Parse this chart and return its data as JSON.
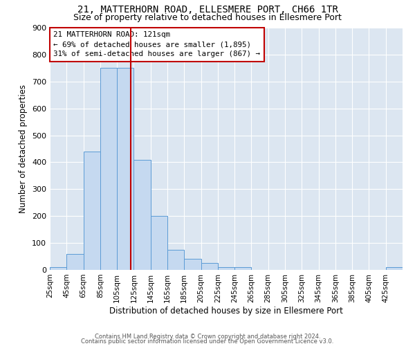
{
  "title1": "21, MATTERHORN ROAD, ELLESMERE PORT, CH66 1TR",
  "title2": "Size of property relative to detached houses in Ellesmere Port",
  "xlabel": "Distribution of detached houses by size in Ellesmere Port",
  "ylabel": "Number of detached properties",
  "bin_edges": [
    25,
    45,
    65,
    85,
    105,
    125,
    145,
    165,
    185,
    205,
    225,
    245,
    265,
    285,
    305,
    325,
    345,
    365,
    385,
    405,
    425,
    445
  ],
  "bar_heights": [
    10,
    60,
    440,
    750,
    750,
    410,
    200,
    75,
    40,
    25,
    10,
    10,
    0,
    0,
    0,
    0,
    0,
    0,
    0,
    0,
    10
  ],
  "bar_color": "#c5d9f0",
  "bar_edgecolor": "#5b9bd5",
  "vline_x": 121,
  "vline_color": "#c00000",
  "annotation_lines": [
    "21 MATTERHORN ROAD: 121sqm",
    "← 69% of detached houses are smaller (1,895)",
    "31% of semi-detached houses are larger (867) →"
  ],
  "annotation_box_edgecolor": "#c00000",
  "ylim": [
    0,
    900
  ],
  "yticks": [
    0,
    100,
    200,
    300,
    400,
    500,
    600,
    700,
    800,
    900
  ],
  "background_color": "#dce6f1",
  "footer1": "Contains HM Land Registry data © Crown copyright and database right 2024.",
  "footer2": "Contains public sector information licensed under the Open Government Licence v3.0.",
  "title_fontsize": 10,
  "subtitle_fontsize": 9,
  "xlabel_fontsize": 8.5,
  "ylabel_fontsize": 8.5
}
